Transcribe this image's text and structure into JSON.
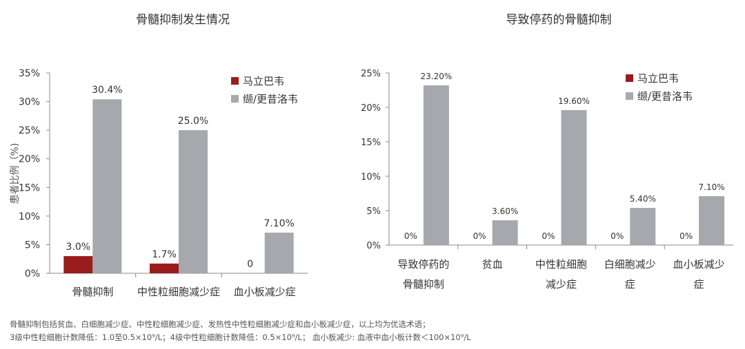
{
  "colors": {
    "series_1": "#9b1c1c",
    "series_2": "#a7a8ad",
    "axis": "#888888",
    "text": "#333333"
  },
  "chart_data": [
    {
      "type": "bar",
      "title": "骨髓抑制发生情况",
      "ylabel": "患者比例（%)",
      "xlabel": "",
      "ylim": [
        0,
        35
      ],
      "yticks": [
        0,
        5,
        10,
        15,
        20,
        25,
        30,
        35
      ],
      "ytick_labels": [
        "0%",
        "5%",
        "10%",
        "15%",
        "20%",
        "25%",
        "30%",
        "35%"
      ],
      "grid": false,
      "legend_position": "top-right",
      "categories": [
        "骨髓抑制",
        "中性粒细胞减少症",
        "血小板减少症"
      ],
      "series": [
        {
          "name": "马立巴韦",
          "values": [
            3.0,
            1.7,
            0
          ],
          "labels": [
            "3.0%",
            "1.7%",
            "0"
          ]
        },
        {
          "name": "缬/更昔洛韦",
          "values": [
            30.4,
            25.0,
            7.1
          ],
          "labels": [
            "30.4%",
            "25.0%",
            "7.10%"
          ]
        }
      ]
    },
    {
      "type": "bar",
      "title": "导致停药的骨髓抑制",
      "ylabel": "",
      "xlabel": "",
      "ylim": [
        0,
        25
      ],
      "yticks": [
        0,
        5,
        10,
        15,
        20,
        25
      ],
      "ytick_labels": [
        "0%",
        "5%",
        "10%",
        "15%",
        "20%",
        "25%"
      ],
      "grid": false,
      "legend_position": "top-right",
      "categories": [
        [
          "导致停药的",
          "骨髓抑制"
        ],
        [
          "贫血"
        ],
        [
          "中性粒细胞",
          "减少症"
        ],
        [
          "白细胞减少",
          "症"
        ],
        [
          "血小板减少",
          "症"
        ]
      ],
      "series": [
        {
          "name": "马立巴韦",
          "values": [
            0,
            0,
            0,
            0,
            0
          ],
          "labels": [
            "0%",
            "0%",
            "0%",
            "0%",
            "0%"
          ]
        },
        {
          "name": "缬/更昔洛韦",
          "values": [
            23.2,
            3.6,
            19.6,
            5.4,
            7.1
          ],
          "labels": [
            "23.20%",
            "3.60%",
            "19.60%",
            "5.40%",
            "7.10%"
          ]
        }
      ]
    }
  ],
  "footnotes": {
    "line1": "骨髓抑制包括贫血、白细胞减少症、中性粒细胞减少症、发热性中性粒细胞减少症和血小板减少症，以上均为优选术语；",
    "line2": "3级中性粒细胞计数降低：1.0至0.5×10⁹/L；4级中性粒细胞计数降低：0.5×10⁹/L；   血小板减少: 血液中血小板计数＜100×10⁹/L"
  }
}
